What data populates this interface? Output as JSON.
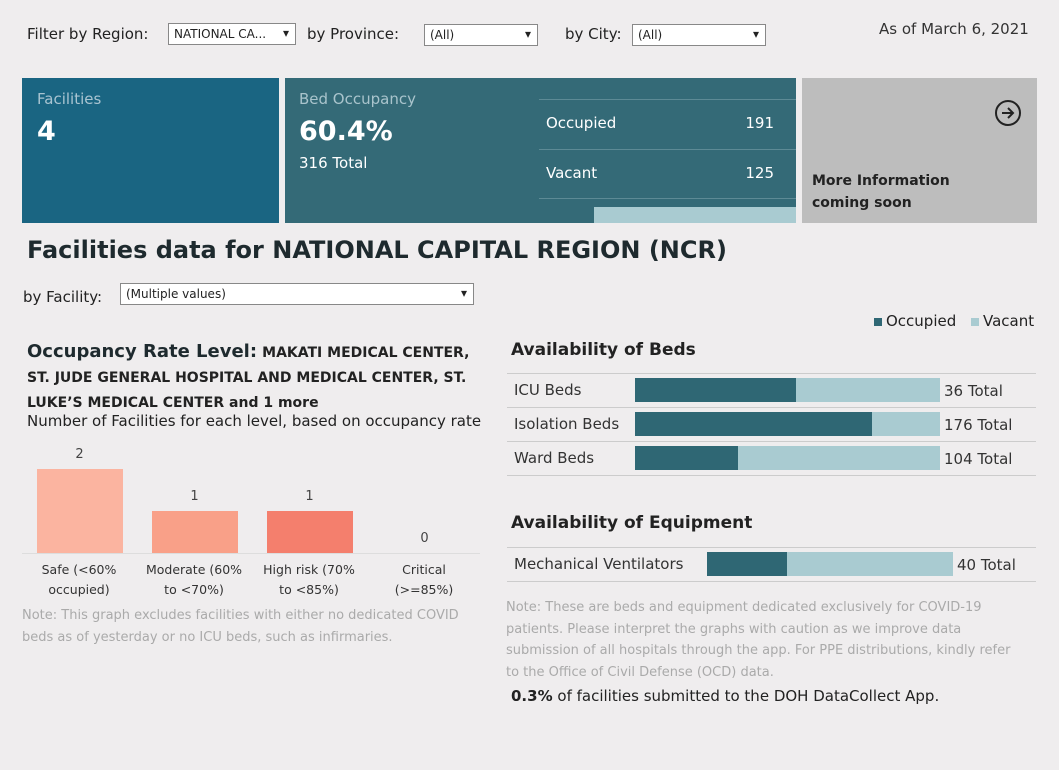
{
  "filters": {
    "region_label": "Filter by Region:",
    "region_value": "NATIONAL CA...",
    "province_label": "by Province:",
    "province_value": "(All)",
    "city_label": "by City:",
    "city_value": "(All)"
  },
  "as_of": "As of March 6, 2021",
  "facilities_card": {
    "label": "Facilities",
    "value": 4
  },
  "bed_card": {
    "label": "Bed Occupancy",
    "percent": 60.4,
    "percent_label": "60.4%",
    "total": "316 Total",
    "rows": [
      {
        "label": "Occupied",
        "value": 191
      },
      {
        "label": "Vacant",
        "value": 125
      }
    ]
  },
  "more_card": {
    "text": "More Information coming soon"
  },
  "heading": "Facilities data for NATIONAL CAPITAL REGION (NCR)",
  "facility_filter": {
    "label": "by Facility:",
    "value": "(Multiple values)"
  },
  "legend": [
    {
      "name": "Occupied",
      "color": "#2f6774"
    },
    {
      "name": "Vacant",
      "color": "#a9cbd1"
    }
  ],
  "occupancy_chart": {
    "type": "bar",
    "title": "Occupancy Rate Level:",
    "title_facilities": "MAKATI MEDICAL CENTER, ST. JUDE GENERAL HOSPITAL AND MEDICAL CENTER, ST. LUKE’S MEDICAL CENTER and 1 more",
    "subtitle": "Number of Facilities for each level, based on occupancy rate",
    "categories": [
      "Safe (<60% occupied)",
      "Moderate (60% to <70%)",
      "High risk (70% to <85%)",
      "Critical (>=85%)"
    ],
    "values": [
      2,
      1,
      1,
      0
    ],
    "colors": [
      "#fbb4a0",
      "#f9a088",
      "#f47f6d",
      "#e8543f"
    ],
    "ylim": [
      0,
      2
    ],
    "note": "Note: This graph excludes facilities with either no dedicated COVID beds as of yesterday or no ICU beds, such as infirmaries."
  },
  "beds": {
    "title": "Availability of Beds",
    "rows": [
      {
        "label": "ICU Beds",
        "occupied": 19,
        "vacant": 17,
        "total_label": "36 Total"
      },
      {
        "label": "Isolation Beds",
        "occupied": 137,
        "vacant": 39,
        "total_label": "176 Total"
      },
      {
        "label": "Ward Beds",
        "occupied": 35,
        "vacant": 69,
        "total_label": "104 Total"
      }
    ]
  },
  "equipment": {
    "title": "Availability of Equipment",
    "rows": [
      {
        "label": "Mechanical Ventilators",
        "occupied": 13,
        "vacant": 27,
        "total_label": "40 Total"
      }
    ]
  },
  "note": "Note: These are beds and equipment dedicated exclusively for COVID-19 patients. Please interpret the graphs with caution as we improve data submission of all hospitals through the app. For PPE distributions, kindly refer to the Office of Civil Defense (OCD) data.",
  "submission": {
    "percent": "0.3%",
    "text": "of facilities submitted to the DOH DataCollect App."
  }
}
